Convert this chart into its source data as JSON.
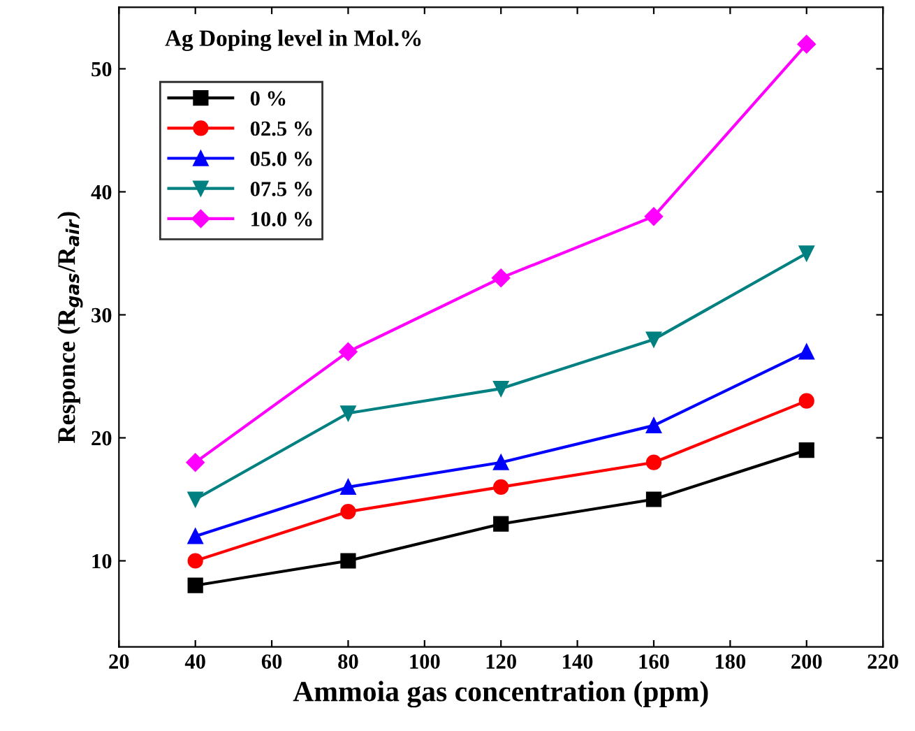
{
  "chart_data": {
    "type": "line",
    "xlabel": "Ammoia gas concentration (ppm)",
    "ylabel": "Responce (R$_{gas}$/R$_{air}$)",
    "annotations": [
      "Ag Doping level in Mol.%"
    ],
    "x": [
      40,
      80,
      120,
      160,
      200
    ],
    "series": [
      {
        "name": "0 %",
        "color": "#000000",
        "marker": "square",
        "values": [
          8,
          10,
          13,
          15,
          19
        ]
      },
      {
        "name": "02.5 %",
        "color": "#ff0000",
        "marker": "circle",
        "values": [
          10,
          14,
          16,
          18,
          23
        ]
      },
      {
        "name": "05.0 %",
        "color": "#0000ff",
        "marker": "triangle",
        "values": [
          12,
          16,
          18,
          21,
          27
        ]
      },
      {
        "name": "07.5 %",
        "color": "#008080",
        "marker": "triangle_down",
        "values": [
          15,
          22,
          24,
          28,
          35
        ]
      },
      {
        "name": "10.0 %",
        "color": "#ff00ff",
        "marker": "diamond",
        "values": [
          18,
          27,
          33,
          38,
          52
        ]
      }
    ],
    "xlim": [
      20,
      220
    ],
    "xticks": [
      20,
      40,
      60,
      80,
      100,
      120,
      140,
      160,
      180,
      200,
      220
    ],
    "ylim": [
      3,
      55
    ],
    "yticks": [
      10,
      20,
      30,
      40,
      50
    ],
    "grid": false,
    "legend": "top left",
    "line_style": "solid"
  }
}
